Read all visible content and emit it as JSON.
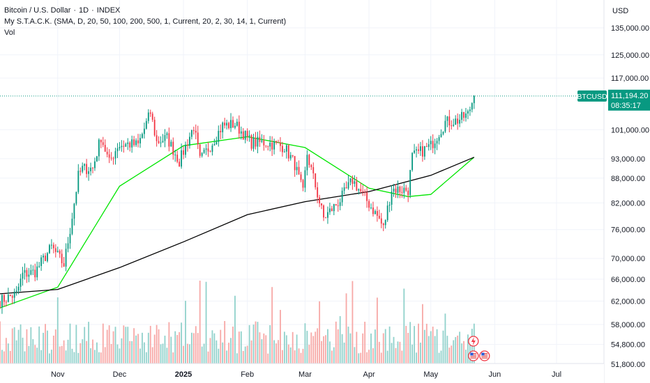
{
  "header": {
    "symbol": "Bitcoin / U.S. Dollar",
    "interval": "1D",
    "exchange": "INDEX",
    "indicator": "My S.T.A.C.K. (SMA, D, 20, 50, 100, 200, 500, 1, Current, 20, 2, 30, 14, 1, Current)",
    "volume_label": "Vol"
  },
  "price_axis": {
    "currency": "USD",
    "ticks": [
      "135,000.00",
      "125,000.00",
      "117,000.00",
      "101,000.00",
      "93,000.00",
      "88,000.00",
      "82,000.00",
      "76,000.00",
      "70,000.00",
      "66,000.00",
      "62,000.00",
      "58,000.00",
      "54,800.00",
      "51,800.00"
    ]
  },
  "last_price": {
    "symbol": "BTCUSD",
    "price": "111,194.20",
    "countdown": "08:35:17",
    "color": "#089981"
  },
  "colors": {
    "up": "#089981",
    "down": "#f23645",
    "up_volume": "#92d2cc",
    "down_volume": "#f7a9a7",
    "sma_fast": "#00e600",
    "sma_slow": "#000000",
    "grid": "#f0f3fa"
  },
  "icons": [
    "lightning-icon",
    "us-flag-icon",
    "us-flag-icon"
  ],
  "chart_data": {
    "type": "candlestick",
    "title": "Bitcoin / U.S. Dollar · 1D · INDEX",
    "price_scale": "log",
    "ylim": [
      51800,
      145000
    ],
    "x_labels": [
      {
        "label": "Nov",
        "date": "2024-11-01"
      },
      {
        "label": "Dec",
        "date": "2024-12-01"
      },
      {
        "label": "2025",
        "date": "2025-01-01"
      },
      {
        "label": "Feb",
        "date": "2025-02-01"
      },
      {
        "label": "Mar",
        "date": "2025-03-01"
      },
      {
        "label": "Apr",
        "date": "2025-04-01"
      },
      {
        "label": "May",
        "date": "2025-05-01"
      },
      {
        "label": "Jun",
        "date": "2025-06-01"
      },
      {
        "label": "Jul",
        "date": "2025-07-01"
      }
    ],
    "x_start": "2024-10-04",
    "x_end": "2025-07-24",
    "ohlc_anchors": [
      [
        "2024-10-04",
        62000,
        0
      ],
      [
        "2024-10-12",
        63300,
        0
      ],
      [
        "2024-10-15",
        66900,
        0
      ],
      [
        "2024-10-21",
        67400,
        0
      ],
      [
        "2024-10-29",
        72300,
        0
      ],
      [
        "2024-11-04",
        68800,
        0
      ],
      [
        "2024-11-07",
        76000,
        0
      ],
      [
        "2024-11-11",
        88500,
        0
      ],
      [
        "2024-11-13",
        90400,
        0
      ],
      [
        "2024-11-18",
        90500,
        0
      ],
      [
        "2024-11-22",
        99000,
        0
      ],
      [
        "2024-11-26",
        91900,
        0
      ],
      [
        "2024-11-30",
        96500,
        0
      ],
      [
        "2024-12-05",
        97000,
        0
      ],
      [
        "2024-12-10",
        96700,
        0
      ],
      [
        "2024-12-16",
        106100,
        0
      ],
      [
        "2024-12-19",
        97500,
        0
      ],
      [
        "2024-12-24",
        98700,
        0
      ],
      [
        "2024-12-30",
        92300,
        0
      ],
      [
        "2025-01-06",
        102000,
        0
      ],
      [
        "2025-01-09",
        92500,
        0
      ],
      [
        "2025-01-14",
        96500,
        0
      ],
      [
        "2025-01-20",
        102200,
        0
      ],
      [
        "2025-01-26",
        102600,
        0
      ],
      [
        "2025-02-03",
        97300,
        0
      ],
      [
        "2025-02-10",
        97400,
        0
      ],
      [
        "2025-02-19",
        96200,
        0
      ],
      [
        "2025-02-24",
        91500,
        0
      ],
      [
        "2025-02-28",
        84300,
        0
      ],
      [
        "2025-03-02",
        94300,
        0
      ],
      [
        "2025-03-10",
        78500,
        0
      ],
      [
        "2025-03-18",
        82700,
        0
      ],
      [
        "2025-03-24",
        87500,
        0
      ],
      [
        "2025-03-31",
        82500,
        0
      ],
      [
        "2025-04-06",
        78300,
        0
      ],
      [
        "2025-04-08",
        76300,
        0
      ],
      [
        "2025-04-12",
        85300,
        0
      ],
      [
        "2025-04-20",
        85100,
        0
      ],
      [
        "2025-04-22",
        93500,
        0
      ],
      [
        "2025-05-01",
        96500,
        0
      ],
      [
        "2025-05-08",
        103200,
        0
      ],
      [
        "2025-05-14",
        103700,
        0
      ],
      [
        "2025-05-19",
        105500,
        0
      ],
      [
        "2025-05-22",
        111194,
        0
      ]
    ],
    "volume_range": [
      0,
      70
    ],
    "sma_fast": {
      "name": "SMA 50",
      "points": [
        [
          "2024-10-04",
          60800
        ],
        [
          "2024-11-01",
          64500
        ],
        [
          "2024-12-01",
          86000
        ],
        [
          "2025-01-01",
          96500
        ],
        [
          "2025-02-01",
          99000
        ],
        [
          "2025-03-01",
          96000
        ],
        [
          "2025-04-01",
          85500
        ],
        [
          "2025-04-20",
          83500
        ],
        [
          "2025-05-01",
          84000
        ],
        [
          "2025-05-22",
          93400
        ]
      ]
    },
    "sma_slow": {
      "name": "SMA 200",
      "points": [
        [
          "2024-10-04",
          63300
        ],
        [
          "2024-11-01",
          64100
        ],
        [
          "2024-12-01",
          68200
        ],
        [
          "2025-01-01",
          73400
        ],
        [
          "2025-02-01",
          79300
        ],
        [
          "2025-03-01",
          82300
        ],
        [
          "2025-04-01",
          84700
        ],
        [
          "2025-05-01",
          88700
        ],
        [
          "2025-05-22",
          93400
        ]
      ]
    }
  }
}
